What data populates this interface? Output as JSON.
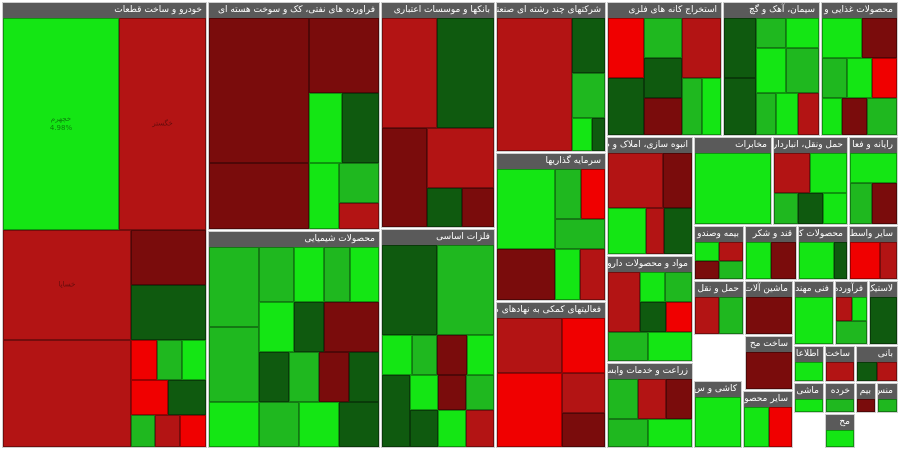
{
  "colors": {
    "strong_green": "#14e614",
    "green": "#1fb81f",
    "dark_green": "#0f5a0f",
    "dark_red": "#7a0c0c",
    "red": "#b31414",
    "strong_red": "#f00000",
    "header_bg": "#5a5a5a",
    "header_text": "#ffffff"
  },
  "sectors": [
    {
      "name": "خودرو و ساخت قطعات"
    },
    {
      "name": "فراورده های نفتی، کک و سوخت هسته ای"
    },
    {
      "name": "بانکها و موسسات اعتباری"
    },
    {
      "name": "شرکتهای چند رشته ای صنعتی"
    },
    {
      "name": "استخراج کانه های فلزی"
    },
    {
      "name": "سیمان، آهک و گچ"
    },
    {
      "name": "محصولات غذایی و آ"
    },
    {
      "name": "سرمایه گذاریها"
    },
    {
      "name": "انبوه سازی، املاک و م"
    },
    {
      "name": "مخابرات"
    },
    {
      "name": "حمل ونقل، انبارداری"
    },
    {
      "name": "رایانه و فعا"
    },
    {
      "name": "محصولات شیمیایی"
    },
    {
      "name": "فلزات اساسی"
    },
    {
      "name": "فعالیتهای کمکی به نهادهای ما"
    },
    {
      "name": "مواد و محصولات دارویی"
    },
    {
      "name": "زراعت و خدمات وابسته"
    },
    {
      "name": "بیمه وصندو"
    },
    {
      "name": "قند و شکر"
    },
    {
      "name": "محصولات کا"
    },
    {
      "name": "سایر واسط"
    },
    {
      "name": "حمل و نقل آبی"
    },
    {
      "name": "ماشین آلات"
    },
    {
      "name": "فنی مهندسی"
    },
    {
      "name": "فرآورده"
    },
    {
      "name": "ساخت مح"
    },
    {
      "name": "اطلاعا"
    },
    {
      "name": "ساخت"
    },
    {
      "name": "لاستیک"
    },
    {
      "name": "کاشی و س"
    },
    {
      "name": "سایر محصو"
    },
    {
      "name": "بانی"
    },
    {
      "name": "خرده"
    },
    {
      "name": "ماشی"
    },
    {
      "name": "بیم"
    },
    {
      "name": "منس"
    },
    {
      "name": "مح"
    }
  ],
  "featured_tiles": [
    {
      "label": "خچهرم\n4.98%"
    },
    {
      "label": "خگستر"
    },
    {
      "label": "خساپا"
    }
  ]
}
